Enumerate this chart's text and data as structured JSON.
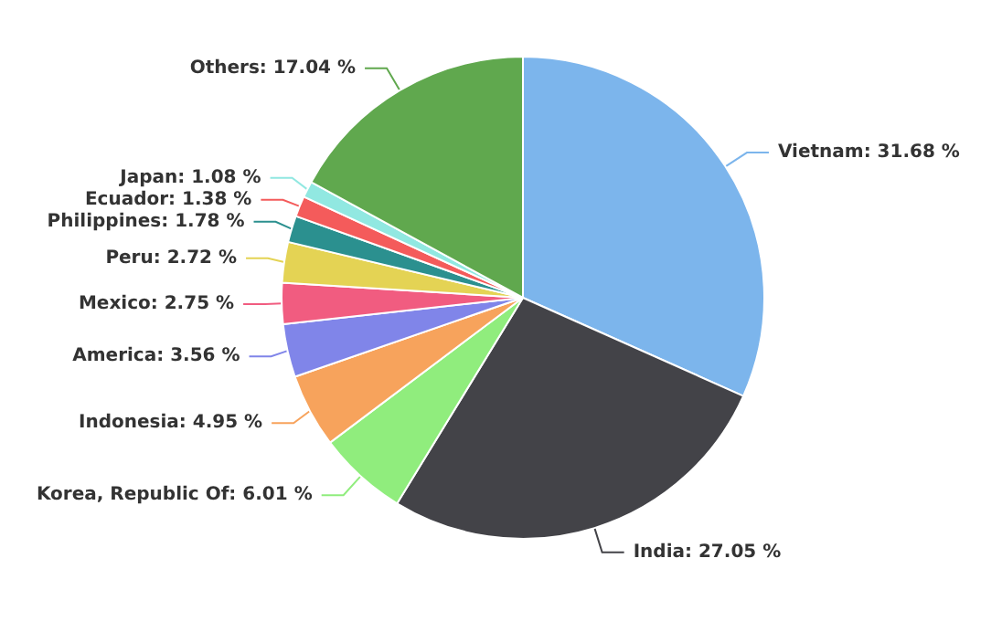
{
  "chart_data": {
    "type": "pie",
    "categories": [
      "Vietnam",
      "India",
      "Korea, Republic Of",
      "Indonesia",
      "America",
      "Mexico",
      "Peru",
      "Philippines",
      "Ecuador",
      "Japan",
      "Others"
    ],
    "values": [
      31.68,
      27.05,
      6.01,
      4.95,
      3.56,
      2.75,
      2.72,
      1.78,
      1.38,
      1.08,
      17.04
    ],
    "value_labels": [
      "31.68 %",
      "27.05 %",
      "6.01 %",
      "4.95 %",
      "3.56 %",
      "2.75 %",
      "2.72 %",
      "1.78 %",
      "1.38 %",
      "1.08 %",
      "17.04 %"
    ],
    "colors": [
      "#7cb5ec",
      "#434348",
      "#90ed7d",
      "#f7a35c",
      "#8085e9",
      "#f15c80",
      "#e4d354",
      "#2b908f",
      "#f45b5b",
      "#91e8e1",
      "#60a84e"
    ],
    "legend": false
  }
}
